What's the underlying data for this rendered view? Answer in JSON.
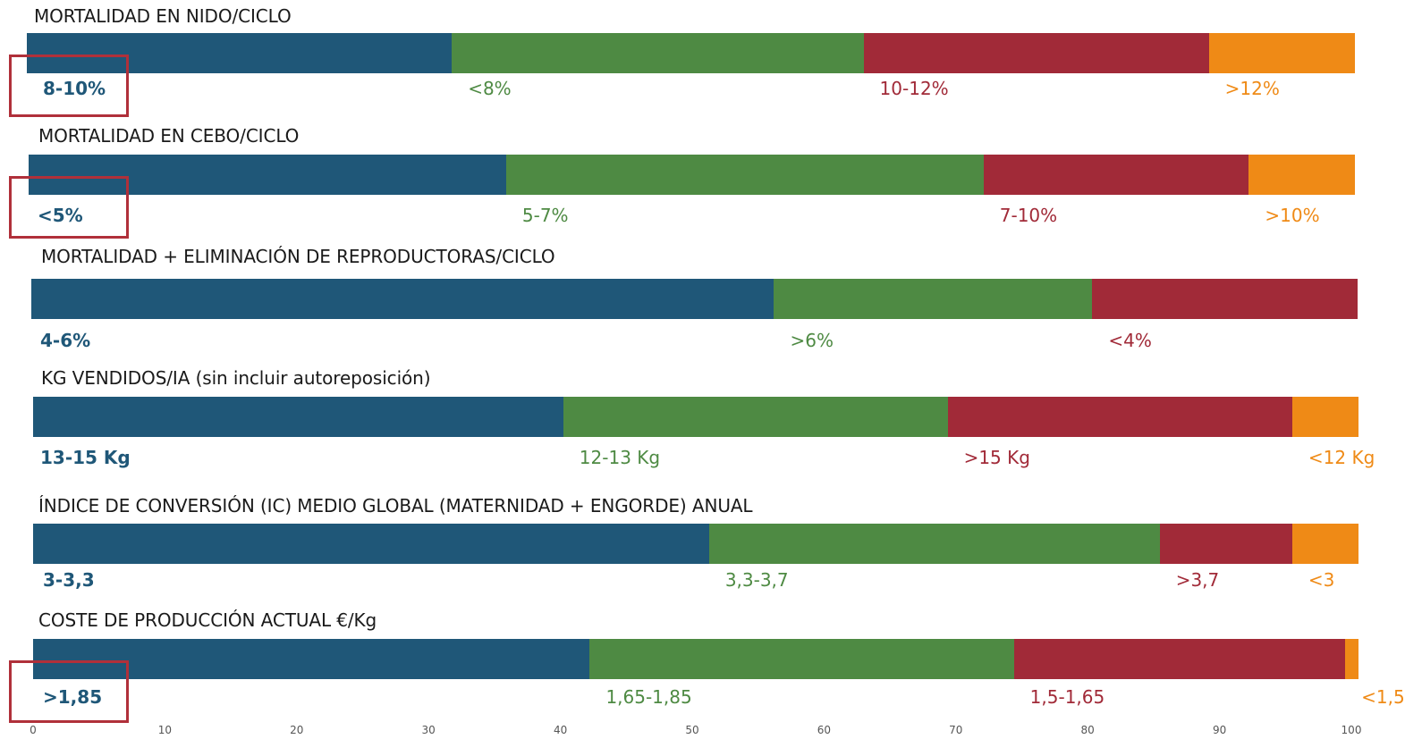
{
  "colors": [
    "#1f5778",
    "#4e8a43",
    "#a12a38",
    "#ef8a16"
  ],
  "x_axis": {
    "ticks": [
      0,
      10,
      20,
      30,
      40,
      50,
      60,
      70,
      80,
      90,
      100
    ],
    "xlim": [
      0,
      100
    ]
  },
  "chart_data": [
    {
      "type": "bar",
      "title": "MORTALIDAD EN NIDO/CICLO",
      "categories": [
        "8-10%",
        "<8%",
        "10-12%",
        ">12%"
      ],
      "values": [
        32,
        31,
        26,
        11
      ],
      "highlighted": "8-10%"
    },
    {
      "type": "bar",
      "title": "MORTALIDAD EN CEBO/CICLO",
      "categories": [
        "<5%",
        "5-7%",
        "7-10%",
        ">10%"
      ],
      "values": [
        36,
        36,
        20,
        8
      ],
      "highlighted": "<5%"
    },
    {
      "type": "bar",
      "title": "MORTALIDAD + ELIMINACIÓN DE REPRODUCTORAS/CICLO",
      "categories": [
        "4-6%",
        ">6%",
        "<4%"
      ],
      "values": [
        56,
        24,
        20
      ]
    },
    {
      "type": "bar",
      "title": "KG VENDIDOS/IA (sin incluir autoreposición)",
      "categories": [
        "13-15 Kg",
        "12-13 Kg",
        ">15 Kg",
        "<12 Kg"
      ],
      "values": [
        40,
        29,
        26,
        5
      ]
    },
    {
      "type": "bar",
      "title": "ÍNDICE DE CONVERSIÓN (IC) MEDIO GLOBAL (MATERNIDAD + ENGORDE) ANUAL",
      "categories": [
        "3-3,3",
        "3,3-3,7",
        ">3,7",
        "<3"
      ],
      "values": [
        51,
        34,
        10,
        5
      ]
    },
    {
      "type": "bar",
      "title": "COSTE DE PRODUCCIÓN ACTUAL €/Kg",
      "categories": [
        ">1,85",
        "1,65-1,85",
        "1,5-1,65",
        "<1,5"
      ],
      "values": [
        42,
        32,
        25,
        1
      ],
      "highlighted": ">1,85"
    }
  ]
}
